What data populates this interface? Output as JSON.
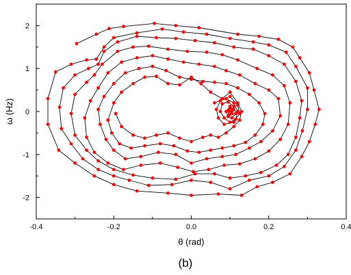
{
  "chart_data": {
    "type": "line",
    "xlabel": "θ (rad)",
    "ylabel": "ω (Hz)",
    "xlim": [
      -0.4,
      0.4
    ],
    "ylim": [
      -2.5,
      2.5
    ],
    "xticks": [
      -0.4,
      -0.2,
      0.0,
      0.2,
      0.4
    ],
    "yticks": [
      -2,
      -1,
      0,
      1,
      2
    ],
    "xtick_labels": [
      "-0.4",
      "-0.2",
      "0.0",
      "0.2",
      "0.4"
    ],
    "ytick_labels": [
      "-2",
      "-1",
      "0",
      "1",
      "2"
    ],
    "grid": false,
    "caption": "(b)",
    "line_color": "#000000",
    "marker_color": "#ff0000",
    "series": [
      {
        "x": [
          -0.296,
          -0.245,
          -0.212,
          -0.175,
          -0.095,
          -0.04,
          0.02,
          0.12,
          0.175,
          0.225,
          0.262,
          0.28,
          0.305,
          0.317,
          0.33,
          0.32,
          0.305,
          0.285,
          0.255,
          0.21,
          0.17,
          0.13,
          0.07,
          0.0,
          -0.06,
          -0.14,
          -0.2,
          -0.25,
          -0.3,
          -0.342,
          -0.37,
          -0.37,
          -0.35,
          -0.31,
          -0.27,
          -0.245
        ],
        "y": [
          1.58,
          1.8,
          1.93,
          1.98,
          2.05,
          2.0,
          1.95,
          1.8,
          1.75,
          1.68,
          1.5,
          1.25,
          0.9,
          0.5,
          0.05,
          -0.3,
          -0.7,
          -1.05,
          -1.45,
          -1.65,
          -1.75,
          -1.95,
          -1.92,
          -1.95,
          -1.9,
          -1.85,
          -1.7,
          -1.5,
          -1.2,
          -0.9,
          -0.3,
          0.3,
          0.92,
          1.1,
          1.2,
          1.22
        ]
      },
      {
        "x": [
          -0.245,
          -0.225,
          -0.2,
          -0.14,
          -0.075,
          -0.02,
          0.04,
          0.1,
          0.16,
          0.2,
          0.245,
          0.27,
          0.3,
          0.3,
          0.287,
          0.27,
          0.24,
          0.2,
          0.15,
          0.1,
          0.05,
          0.0,
          -0.05,
          -0.11,
          -0.16,
          -0.2,
          -0.24,
          -0.28,
          -0.31,
          -0.335,
          -0.34,
          -0.33,
          -0.3,
          -0.265,
          -0.24
        ],
        "y": [
          1.22,
          1.5,
          1.72,
          1.83,
          1.92,
          1.85,
          1.8,
          1.7,
          1.62,
          1.55,
          1.38,
          1.05,
          0.55,
          0.05,
          -0.45,
          -0.9,
          -1.28,
          -1.5,
          -1.6,
          -1.8,
          -1.65,
          -1.6,
          -1.7,
          -1.72,
          -1.6,
          -1.5,
          -1.35,
          -1.1,
          -0.75,
          -0.4,
          0.1,
          0.55,
          0.85,
          1.0,
          1.1
        ]
      },
      {
        "x": [
          -0.24,
          -0.225,
          -0.19,
          -0.14,
          -0.09,
          -0.04,
          0.01,
          0.06,
          0.11,
          0.16,
          0.2,
          0.24,
          0.27,
          0.285,
          0.28,
          0.27,
          0.25,
          0.22,
          0.18,
          0.14,
          0.1,
          0.06,
          0.01,
          -0.04,
          -0.1,
          -0.15,
          -0.2,
          -0.24,
          -0.27,
          -0.3,
          -0.31,
          -0.3,
          -0.27,
          -0.25
        ],
        "y": [
          1.1,
          1.4,
          1.62,
          1.75,
          1.72,
          1.7,
          1.65,
          1.6,
          1.5,
          1.45,
          1.3,
          1.1,
          0.7,
          0.25,
          -0.15,
          -0.6,
          -1.0,
          -1.25,
          -1.42,
          -1.5,
          -1.55,
          -1.45,
          -1.45,
          -1.58,
          -1.55,
          -1.48,
          -1.35,
          -1.15,
          -0.9,
          -0.55,
          -0.05,
          0.4,
          0.68,
          0.85
        ]
      },
      {
        "x": [
          -0.25,
          -0.23,
          -0.19,
          -0.15,
          -0.11,
          -0.06,
          -0.01,
          0.04,
          0.08,
          0.12,
          0.17,
          0.21,
          0.24,
          0.255,
          0.25,
          0.23,
          0.2,
          0.165,
          0.125,
          0.085,
          0.045,
          0.005,
          -0.035,
          -0.08,
          -0.13,
          -0.175,
          -0.215,
          -0.25,
          -0.27,
          -0.275,
          -0.26,
          -0.24
        ],
        "y": [
          0.85,
          1.1,
          1.4,
          1.5,
          1.52,
          1.45,
          1.4,
          1.38,
          1.32,
          1.2,
          1.0,
          0.85,
          0.6,
          0.2,
          -0.3,
          -0.65,
          -0.92,
          -1.1,
          -1.22,
          -1.25,
          -1.35,
          -1.4,
          -1.3,
          -1.2,
          -1.25,
          -1.35,
          -1.2,
          -0.95,
          -0.6,
          -0.15,
          0.25,
          0.55
        ]
      },
      {
        "x": [
          -0.24,
          -0.215,
          -0.18,
          -0.14,
          -0.1,
          -0.06,
          -0.02,
          0.02,
          0.06,
          0.09,
          0.125,
          0.165,
          0.2,
          0.225,
          0.23,
          0.21,
          0.18,
          0.15,
          0.115,
          0.08,
          0.04,
          0.0,
          -0.04,
          -0.085,
          -0.13,
          -0.17,
          -0.2,
          -0.22,
          -0.235,
          -0.24
        ],
        "y": [
          0.55,
          0.9,
          1.15,
          1.25,
          1.3,
          1.22,
          1.15,
          1.1,
          1.05,
          0.95,
          0.85,
          0.65,
          0.5,
          0.3,
          -0.1,
          -0.45,
          -0.7,
          -0.85,
          -1.0,
          -1.05,
          -1.1,
          -1.2,
          -1.0,
          -0.95,
          -1.05,
          -1.1,
          -0.9,
          -0.65,
          -0.3,
          0.05
        ]
      },
      {
        "x": [
          -0.24,
          -0.225,
          -0.2,
          -0.17,
          -0.135,
          -0.1,
          -0.065,
          -0.03,
          0.0,
          0.03,
          0.06,
          0.09,
          0.12,
          0.15,
          0.175,
          0.19,
          0.185,
          0.165,
          0.14,
          0.11,
          0.08,
          0.05,
          0.02,
          -0.01,
          -0.045,
          -0.08,
          -0.12,
          -0.155,
          -0.185,
          -0.205,
          -0.215
        ],
        "y": [
          0.05,
          0.35,
          0.65,
          0.9,
          1.0,
          1.05,
          0.95,
          0.8,
          0.75,
          0.7,
          0.68,
          0.65,
          0.55,
          0.4,
          0.2,
          -0.05,
          -0.3,
          -0.55,
          -0.72,
          -0.8,
          -0.85,
          -0.9,
          -0.95,
          -0.92,
          -0.8,
          -0.75,
          -0.8,
          -0.85,
          -0.75,
          -0.5,
          -0.2
        ]
      },
      {
        "x": [
          -0.215,
          -0.2,
          -0.18,
          -0.15,
          -0.12,
          -0.09,
          -0.06,
          -0.03,
          0.0,
          0.025,
          0.05,
          0.08,
          0.1,
          0.12,
          0.13,
          0.125,
          0.11,
          0.09,
          0.07,
          0.05,
          0.03,
          0.0,
          -0.03,
          -0.06,
          -0.09,
          -0.12,
          -0.15,
          -0.18,
          -0.195
        ],
        "y": [
          -0.2,
          0.2,
          0.45,
          0.65,
          0.8,
          0.82,
          0.65,
          0.62,
          0.8,
          0.65,
          0.45,
          0.3,
          0.45,
          0.2,
          0.0,
          -0.2,
          -0.35,
          -0.5,
          -0.6,
          -0.55,
          -0.6,
          -0.7,
          -0.62,
          -0.5,
          -0.55,
          -0.62,
          -0.55,
          -0.35,
          -0.05
        ]
      },
      {
        "x": [
          0.06,
          0.1,
          0.12,
          0.125,
          0.11,
          0.085,
          0.07,
          0.065,
          0.075,
          0.09,
          0.11,
          0.12,
          0.115,
          0.1,
          0.085,
          0.075,
          0.08,
          0.095,
          0.11,
          0.115,
          0.105,
          0.095,
          0.09,
          0.1,
          0.108,
          0.105,
          0.098,
          0.095,
          0.1,
          0.106,
          0.104,
          0.1
        ],
        "y": [
          0.2,
          0.35,
          0.15,
          -0.05,
          -0.25,
          -0.3,
          -0.15,
          0.05,
          0.25,
          0.3,
          0.2,
          0.0,
          -0.18,
          -0.25,
          -0.15,
          0.0,
          0.18,
          0.22,
          0.12,
          -0.05,
          -0.15,
          -0.12,
          0.0,
          0.12,
          0.05,
          -0.05,
          -0.08,
          0.02,
          0.08,
          0.02,
          -0.04,
          0.0
        ]
      }
    ]
  }
}
